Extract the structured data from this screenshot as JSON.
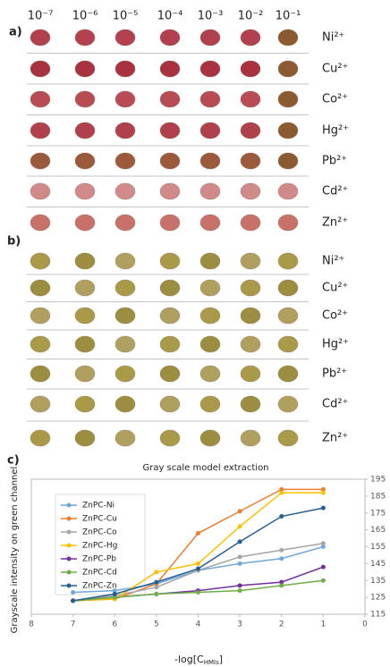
{
  "panel_a": {
    "label": "a)",
    "concentrations": [
      "10⁻⁷",
      "10⁻⁶",
      "10⁻⁵",
      "10⁻⁴",
      "10⁻³",
      "10⁻²",
      "10⁻¹"
    ],
    "ions": [
      "Ni²⁺",
      "Cu²⁺",
      "Co²⁺",
      "Hg²⁺",
      "Pb²⁺",
      "Cd²⁺",
      "Zn²⁺"
    ]
  },
  "panel_b": {
    "label": "b)",
    "ions": [
      "Ni²⁺",
      "Cu²⁺",
      "Co²⁺",
      "Hg²⁺",
      "Pb²⁺",
      "Cd²⁺",
      "Zn²⁺"
    ]
  },
  "panel_c_label": "c)",
  "chart_data": {
    "type": "line",
    "title": "Gray scale model extraction",
    "y_label": "Grayscale intensity on green channel",
    "x_label": {
      "main": "-log[C",
      "sub": "HMIs",
      "end": "]"
    },
    "x": [
      7,
      6,
      5,
      4,
      3,
      2,
      1
    ],
    "xlim": [
      8,
      0
    ],
    "xticks": [
      8,
      7,
      6,
      5,
      4,
      3,
      2,
      1,
      0
    ],
    "ylim": [
      115,
      195
    ],
    "yticks": [
      115,
      125,
      135,
      145,
      155,
      165,
      175,
      185,
      195
    ],
    "series": [
      {
        "name": "ZnPC-Ni",
        "color": "#6fa8dc",
        "values": [
          128,
          129,
          133,
          141,
          145,
          148,
          155
        ]
      },
      {
        "name": "ZnPC-Cu",
        "color": "#ed7d31",
        "values": [
          123,
          124,
          133,
          163,
          176,
          189,
          189
        ]
      },
      {
        "name": "ZnPC-Co",
        "color": "#a5a5a5",
        "values": [
          123,
          126,
          131,
          141,
          149,
          153,
          157
        ]
      },
      {
        "name": "ZnPC-Hg",
        "color": "#ffc000",
        "values": [
          123,
          124,
          140,
          145,
          167,
          187,
          187
        ]
      },
      {
        "name": "ZnPC-Pb",
        "color": "#7030a0",
        "values": [
          123,
          125,
          127,
          129,
          132,
          134,
          143
        ]
      },
      {
        "name": "ZnPC-Cd",
        "color": "#70ad47",
        "values": [
          123,
          125,
          127,
          128,
          129,
          132,
          135
        ]
      },
      {
        "name": "ZnPC-Zn",
        "color": "#255e91",
        "values": [
          123,
          127,
          134,
          142,
          158,
          173,
          178
        ]
      }
    ]
  }
}
